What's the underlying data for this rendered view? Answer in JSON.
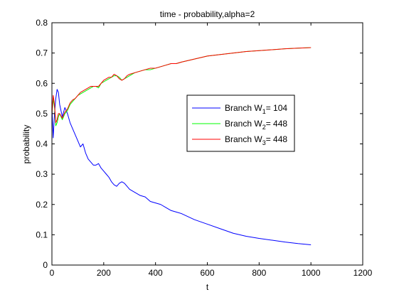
{
  "chart_data": {
    "type": "line",
    "title": "time - probability,alpha=2",
    "xlabel": "t",
    "ylabel": "probability",
    "xlim": [
      0,
      1200
    ],
    "ylim": [
      0,
      0.8
    ],
    "xticks": [
      0,
      200,
      400,
      600,
      800,
      1000,
      1200
    ],
    "yticks": [
      0,
      0.1,
      0.2,
      0.3,
      0.4,
      0.5,
      0.6,
      0.7,
      0.8
    ],
    "grid": false,
    "legend_position": "right",
    "series": [
      {
        "name": "Branch W1= 104",
        "legend_prefix": "Branch W",
        "legend_sub": "1",
        "legend_suffix": "= 104",
        "color": "#0000ff",
        "x": [
          0,
          5,
          10,
          15,
          20,
          25,
          30,
          40,
          50,
          60,
          70,
          80,
          90,
          100,
          110,
          120,
          130,
          140,
          150,
          160,
          170,
          180,
          190,
          200,
          210,
          220,
          230,
          240,
          250,
          260,
          270,
          280,
          290,
          300,
          320,
          340,
          360,
          380,
          400,
          420,
          440,
          460,
          480,
          500,
          550,
          600,
          650,
          700,
          750,
          800,
          850,
          900,
          950,
          1000
        ],
        "y": [
          0.52,
          0.42,
          0.5,
          0.55,
          0.58,
          0.57,
          0.53,
          0.49,
          0.52,
          0.5,
          0.47,
          0.45,
          0.43,
          0.41,
          0.39,
          0.4,
          0.37,
          0.35,
          0.34,
          0.33,
          0.33,
          0.335,
          0.32,
          0.31,
          0.3,
          0.29,
          0.275,
          0.265,
          0.26,
          0.27,
          0.275,
          0.27,
          0.26,
          0.25,
          0.24,
          0.23,
          0.225,
          0.21,
          0.205,
          0.2,
          0.19,
          0.18,
          0.175,
          0.17,
          0.15,
          0.135,
          0.12,
          0.105,
          0.095,
          0.088,
          0.082,
          0.076,
          0.071,
          0.067
        ]
      },
      {
        "name": "Branch W2= 448",
        "legend_prefix": "Branch W",
        "legend_sub": "2",
        "legend_suffix": "= 448",
        "color": "#00ff00",
        "x": [
          0,
          5,
          10,
          15,
          20,
          25,
          30,
          40,
          50,
          60,
          70,
          80,
          90,
          100,
          110,
          120,
          130,
          140,
          150,
          160,
          170,
          180,
          190,
          200,
          210,
          220,
          230,
          240,
          250,
          260,
          270,
          280,
          290,
          300,
          320,
          340,
          360,
          380,
          400,
          420,
          440,
          460,
          480,
          500,
          550,
          600,
          650,
          700,
          750,
          800,
          850,
          900,
          950,
          1000
        ],
        "y": [
          0.5,
          0.55,
          0.52,
          0.46,
          0.47,
          0.49,
          0.5,
          0.48,
          0.5,
          0.51,
          0.53,
          0.54,
          0.55,
          0.56,
          0.565,
          0.57,
          0.575,
          0.58,
          0.585,
          0.59,
          0.59,
          0.585,
          0.6,
          0.605,
          0.61,
          0.615,
          0.62,
          0.625,
          0.625,
          0.62,
          0.61,
          0.615,
          0.62,
          0.625,
          0.635,
          0.64,
          0.645,
          0.645,
          0.65,
          0.655,
          0.66,
          0.665,
          0.665,
          0.67,
          0.68,
          0.69,
          0.695,
          0.7,
          0.705,
          0.708,
          0.711,
          0.714,
          0.716,
          0.718
        ]
      },
      {
        "name": "Branch W3= 448",
        "legend_prefix": "Branch W",
        "legend_sub": "3",
        "legend_suffix": "= 448",
        "color": "#ff0000",
        "x": [
          0,
          5,
          10,
          15,
          20,
          25,
          30,
          40,
          50,
          60,
          70,
          80,
          90,
          100,
          110,
          120,
          130,
          140,
          150,
          160,
          170,
          180,
          190,
          200,
          210,
          220,
          230,
          240,
          250,
          260,
          270,
          280,
          290,
          300,
          320,
          340,
          360,
          380,
          400,
          420,
          440,
          460,
          480,
          500,
          550,
          600,
          650,
          700,
          750,
          800,
          850,
          900,
          950,
          1000
        ],
        "y": [
          0.5,
          0.56,
          0.53,
          0.47,
          0.48,
          0.5,
          0.5,
          0.485,
          0.505,
          0.515,
          0.535,
          0.545,
          0.55,
          0.56,
          0.57,
          0.575,
          0.58,
          0.585,
          0.59,
          0.59,
          0.59,
          0.59,
          0.6,
          0.61,
          0.615,
          0.62,
          0.62,
          0.63,
          0.625,
          0.615,
          0.61,
          0.615,
          0.625,
          0.63,
          0.635,
          0.64,
          0.645,
          0.65,
          0.65,
          0.655,
          0.66,
          0.665,
          0.665,
          0.67,
          0.68,
          0.69,
          0.695,
          0.7,
          0.705,
          0.708,
          0.711,
          0.714,
          0.716,
          0.718
        ]
      }
    ]
  }
}
